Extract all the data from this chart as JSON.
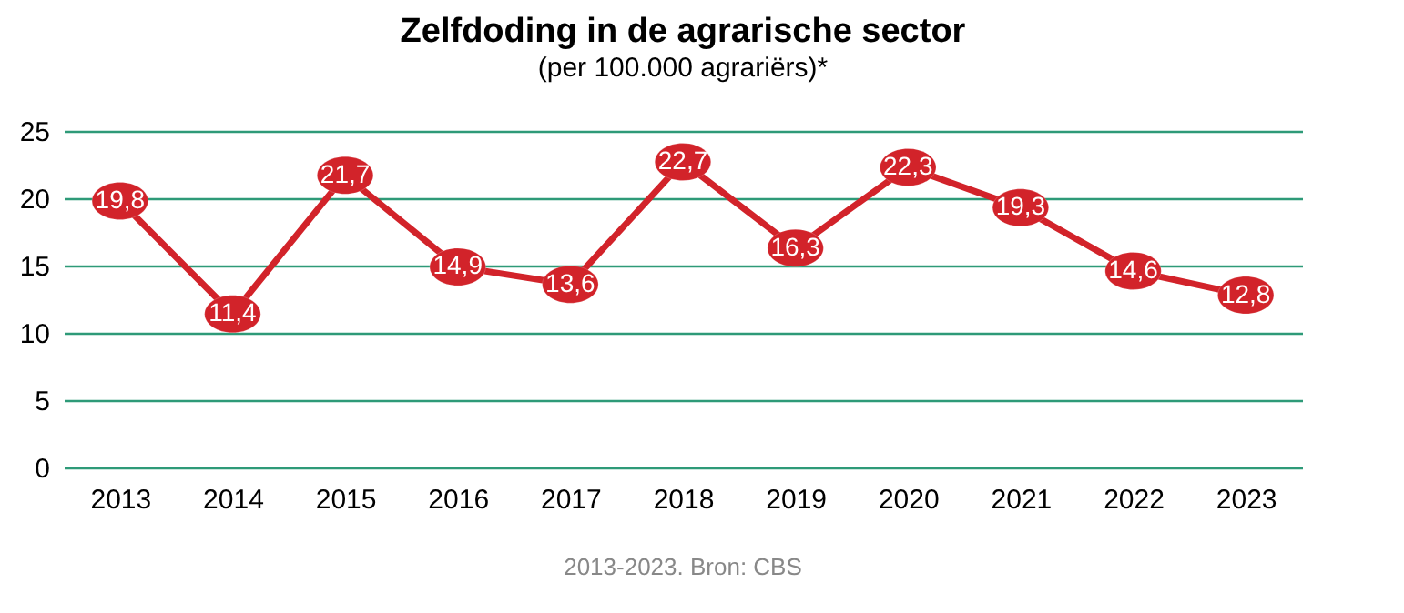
{
  "chart_data": {
    "type": "line",
    "title": "Zelfdoding in de agrarische sector",
    "subtitle": "(per 100.000 agrariërs)*",
    "categories": [
      "2013",
      "2014",
      "2015",
      "2016",
      "2017",
      "2018",
      "2019",
      "2020",
      "2021",
      "2022",
      "2023"
    ],
    "series": [
      {
        "color": "#d2232a",
        "values": [
          19.8,
          11.4,
          21.7,
          14.9,
          13.6,
          22.7,
          16.3,
          22.3,
          19.3,
          14.6,
          12.8
        ],
        "value_labels": [
          "19,8",
          "11,4",
          "21,7",
          "14,9",
          "13,6",
          "22,7",
          "16,3",
          "22,3",
          "19,3",
          "14,6",
          "12,8"
        ]
      }
    ],
    "ylim": [
      0,
      25
    ],
    "yticks": [
      0,
      5,
      10,
      15,
      20,
      25
    ],
    "grid": "y",
    "marker": "circle",
    "line_style": "solid",
    "annotations": [
      "2013-2023. Bron: CBS"
    ]
  }
}
